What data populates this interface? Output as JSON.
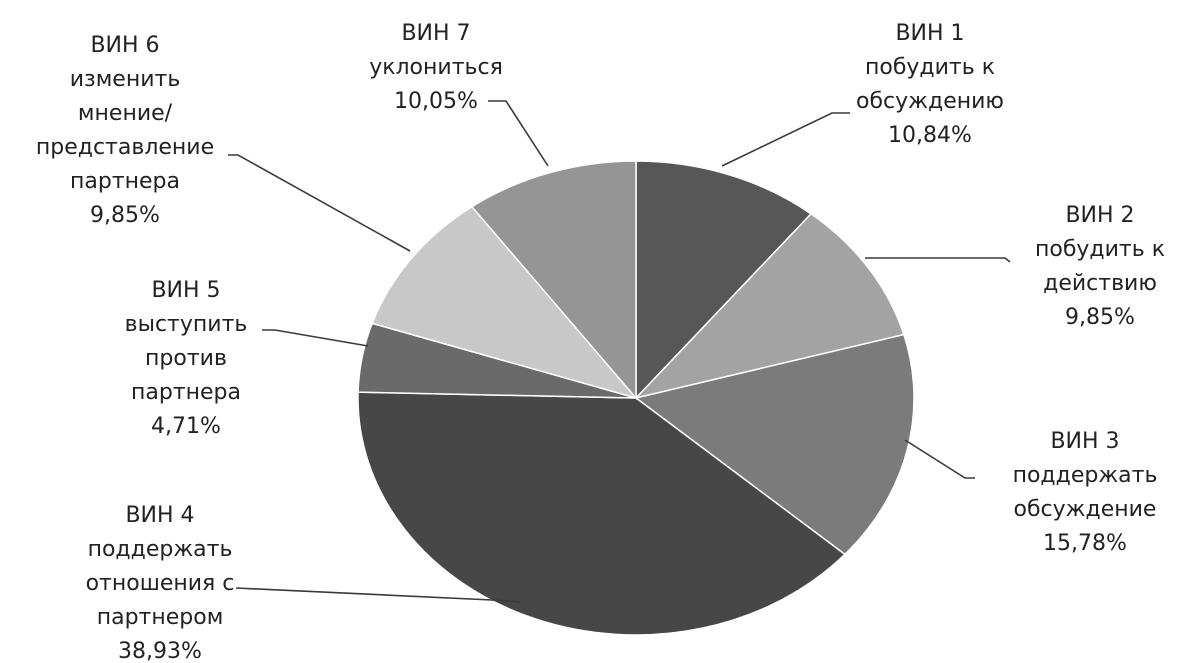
{
  "chart_data": {
    "type": "pie",
    "title": "",
    "slices": [
      {
        "label_lines": [
          "ВИН 1",
          "побудить к",
          "обсуждению",
          "10,84%"
        ],
        "value": 10.84,
        "color": "#575757"
      },
      {
        "label_lines": [
          "ВИН 2",
          "побудить к",
          "действию",
          "9,85%"
        ],
        "value": 9.85,
        "color": "#a3a3a3"
      },
      {
        "label_lines": [
          "ВИН 3",
          "поддержать",
          "обсуждение",
          "15,78%"
        ],
        "value": 15.78,
        "color": "#7b7b7b"
      },
      {
        "label_lines": [
          "ВИН 4",
          "поддержать",
          "отношения с",
          "партнером",
          "38,93%"
        ],
        "value": 38.93,
        "color": "#474747"
      },
      {
        "label_lines": [
          "ВИН 5",
          "выступить",
          "против",
          "партнера",
          "4,71%"
        ],
        "value": 4.71,
        "color": "#6a6a6a"
      },
      {
        "label_lines": [
          "ВИН 6",
          "изменить",
          "мнение/",
          "представление",
          "партнера",
          "9,85%"
        ],
        "value": 9.85,
        "color": "#c8c8c8"
      },
      {
        "label_lines": [
          "ВИН 7",
          "уклониться",
          "10,05%"
        ],
        "value": 10.05,
        "color": "#959595"
      }
    ]
  }
}
